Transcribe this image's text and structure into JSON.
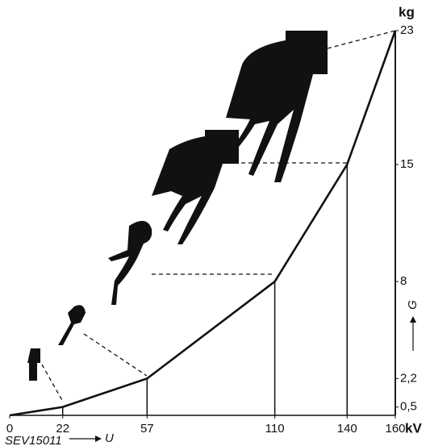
{
  "chart_data": {
    "type": "line",
    "x": [
      0,
      22,
      57,
      110,
      140,
      160
    ],
    "values": [
      0,
      0.5,
      2.2,
      8,
      15,
      23
    ],
    "color": "#111111",
    "xlim": [
      0,
      160
    ],
    "ylim": [
      0,
      23
    ],
    "xticks": [
      0,
      22,
      57,
      110,
      140,
      160
    ],
    "yticks": [
      {
        "value": 0.5,
        "label": "0,5"
      },
      {
        "value": 2.2,
        "label": "2,2"
      },
      8,
      15,
      23
    ],
    "x_unit": "kV",
    "y_unit": "kg",
    "xlabel": "U",
    "ylabel": "G",
    "note": "SEV15011"
  }
}
